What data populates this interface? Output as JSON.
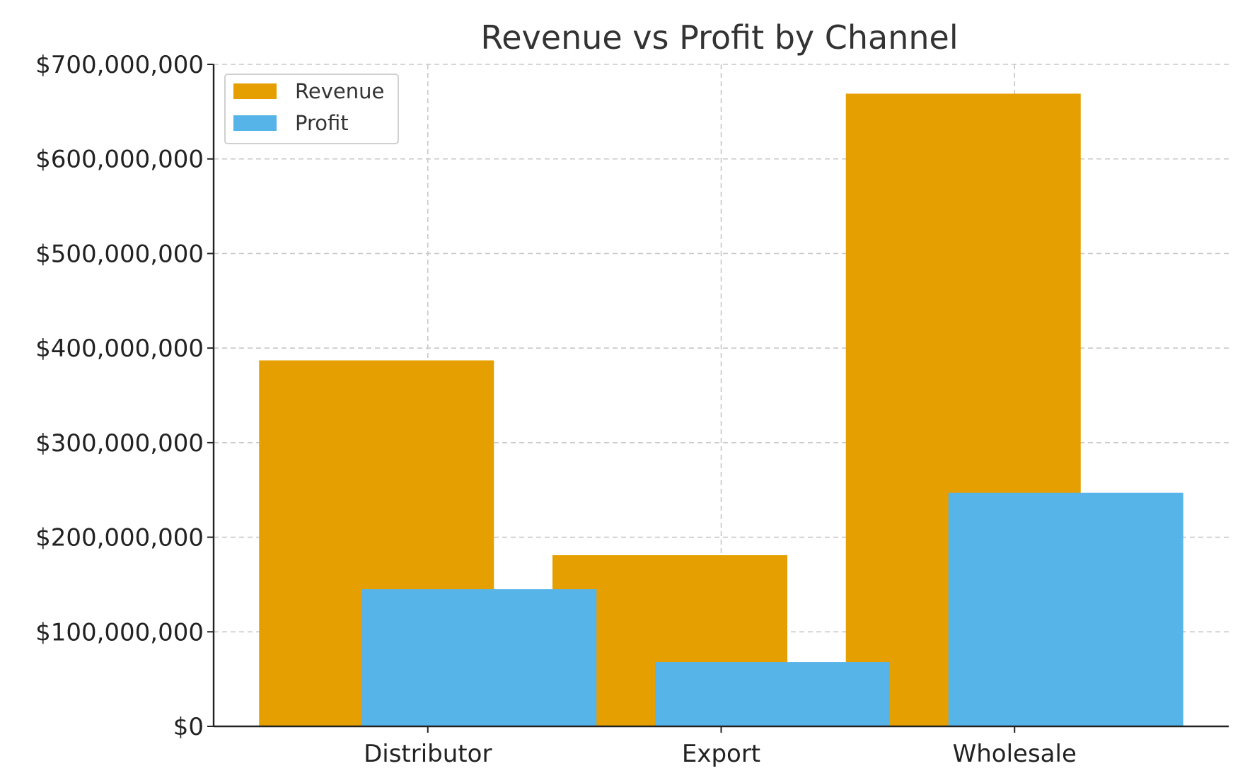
{
  "chart_data": {
    "type": "bar",
    "title": "Revenue vs Profit by Channel",
    "xlabel": "",
    "ylabel": "",
    "categories": [
      "Distributor",
      "Export",
      "Wholesale"
    ],
    "series": [
      {
        "name": "Revenue",
        "color": "#E69F00",
        "values": [
          387000000,
          181000000,
          669000000
        ]
      },
      {
        "name": "Profit",
        "color": "#56B4E9",
        "values": [
          145000000,
          68000000,
          247000000
        ]
      }
    ],
    "ylim": [
      0,
      700000000
    ],
    "yticks": [
      0,
      100000000,
      200000000,
      300000000,
      400000000,
      500000000,
      600000000,
      700000000
    ],
    "ytick_labels": [
      "$0",
      "$100,000,000",
      "$200,000,000",
      "$300,000,000",
      "$400,000,000",
      "$500,000,000",
      "$600,000,000",
      "$700,000,000"
    ],
    "grid": true,
    "legend_position": "top-left"
  }
}
